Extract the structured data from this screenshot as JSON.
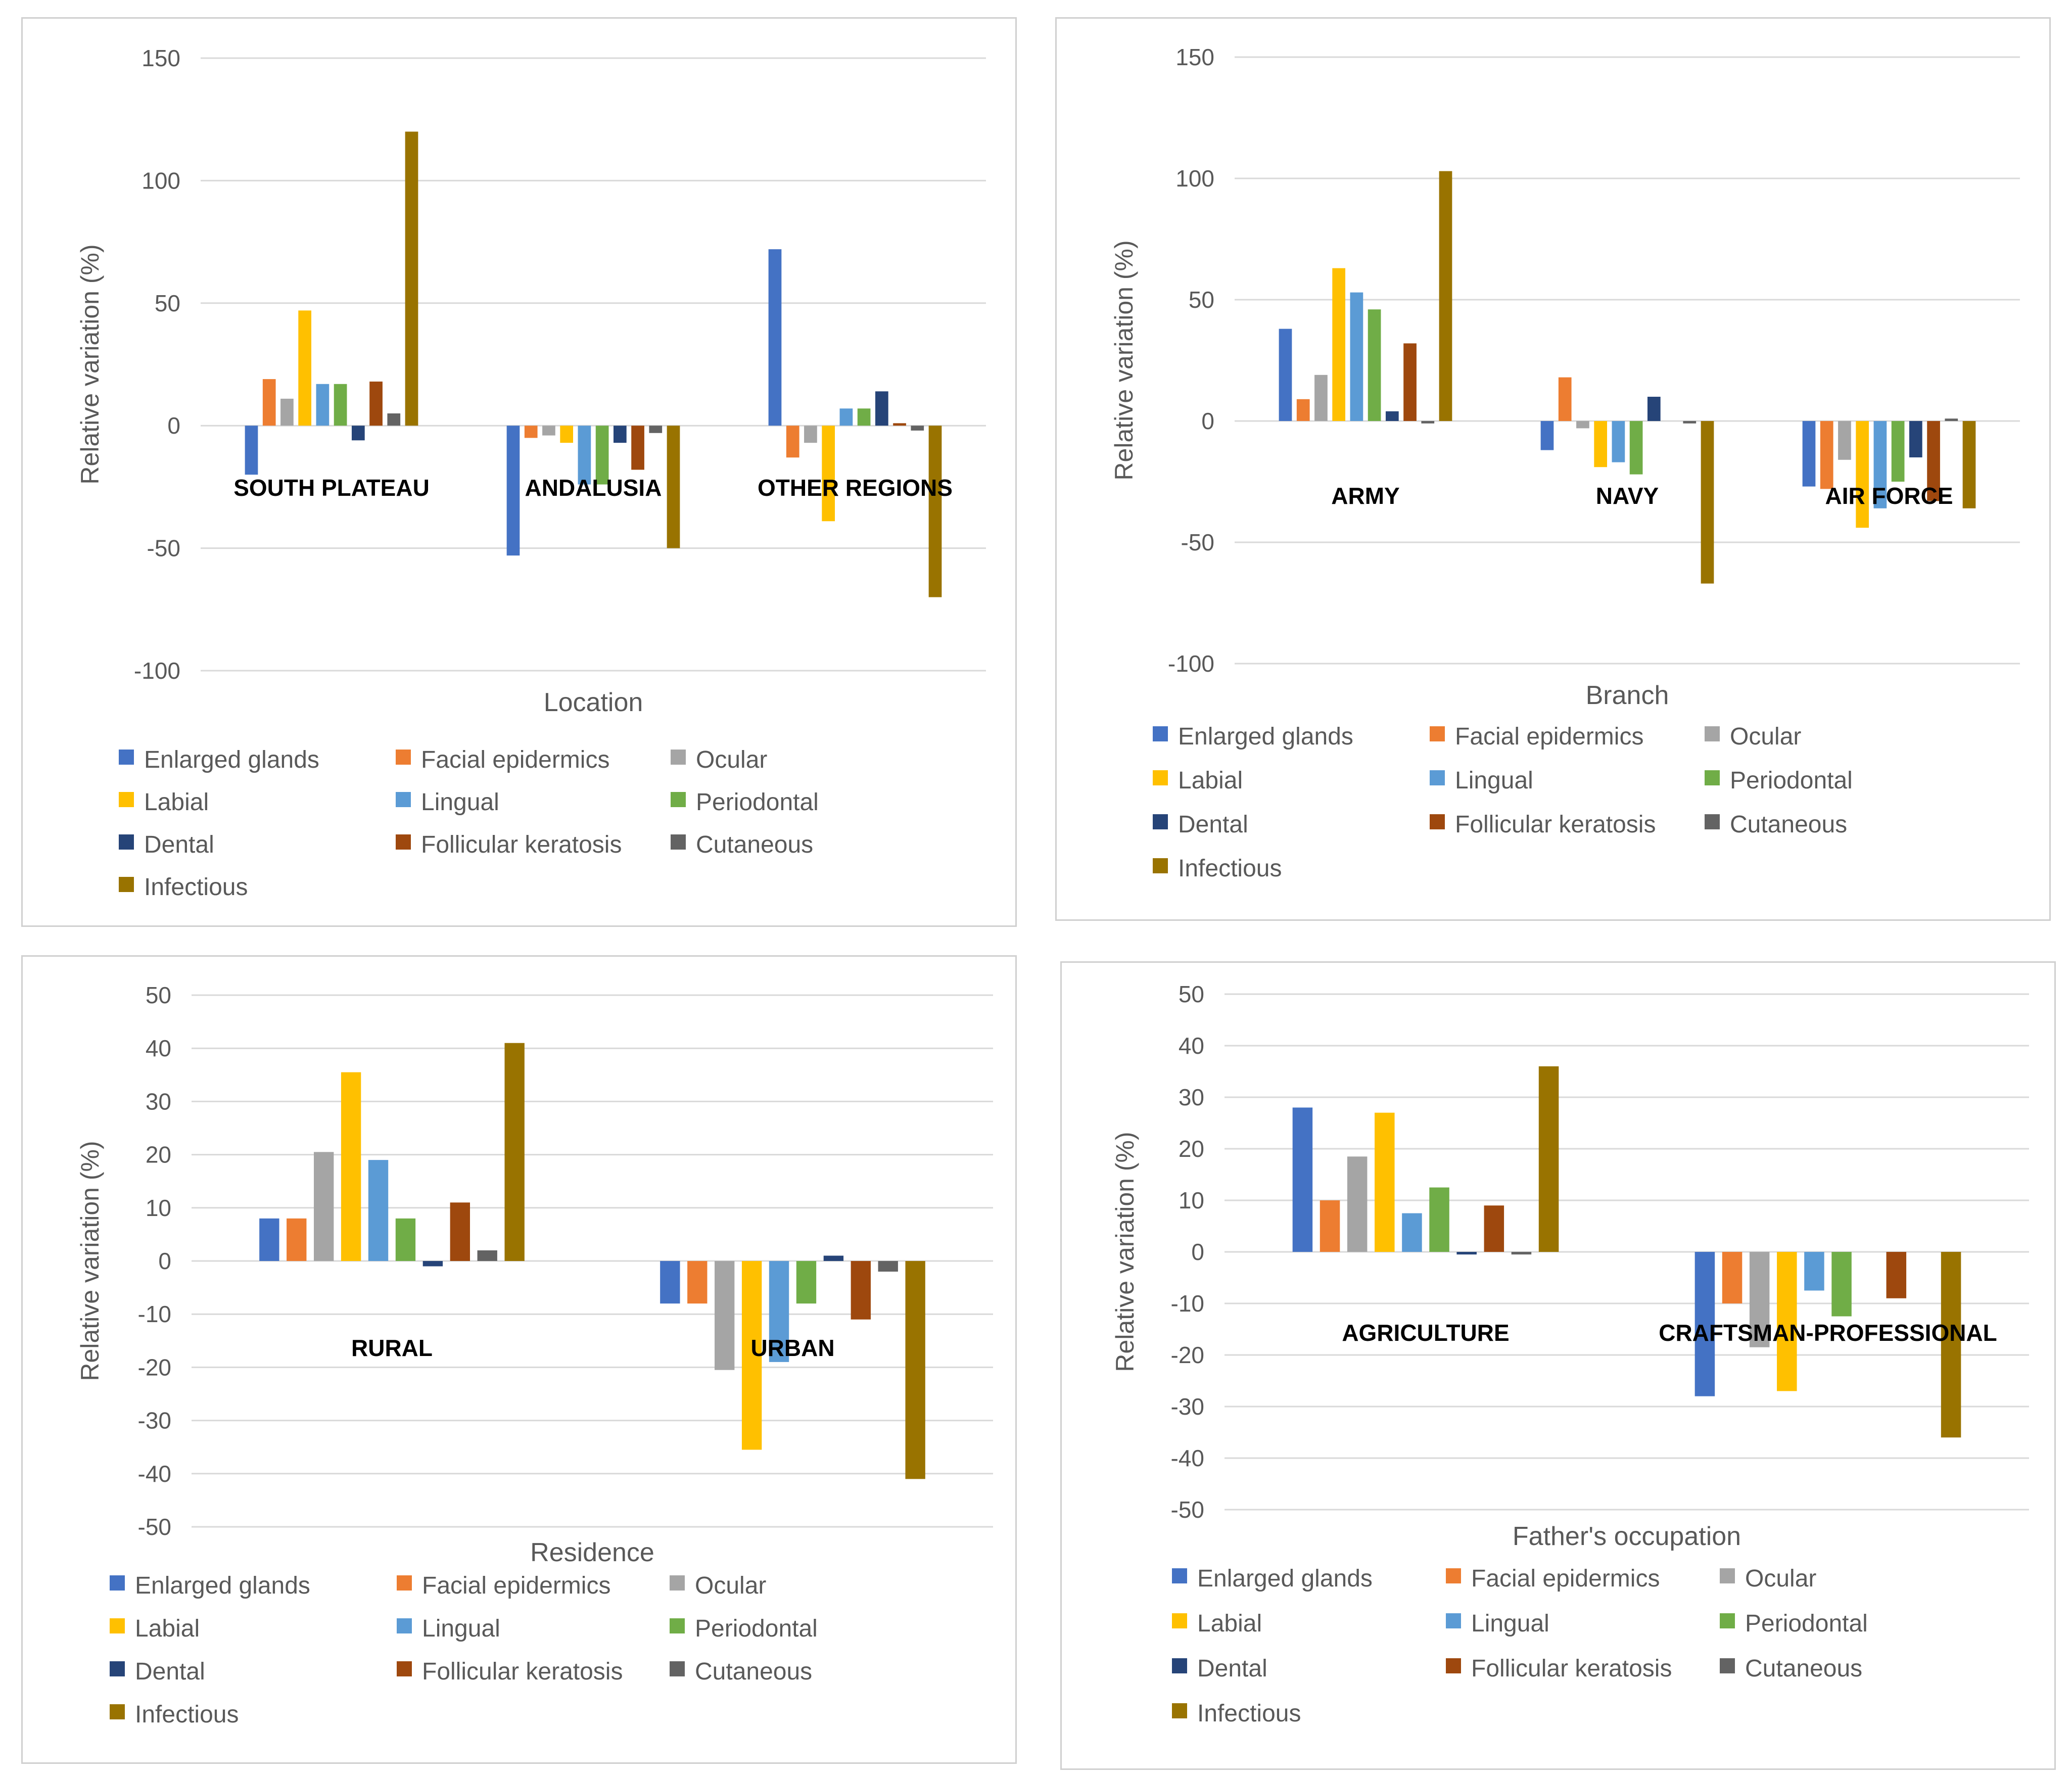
{
  "colors": {
    "Enlarged glands": "#4472C4",
    "Facial epidermics": "#ED7D31",
    "Ocular": "#A5A5A5",
    "Labial": "#FFC000",
    "Lingual": "#5B9BD5",
    "Periodontal": "#70AD47",
    "Dental": "#264478",
    "Follicular keratosis": "#9E480E",
    "Cutaneous": "#636363",
    "Infectious": "#997300"
  },
  "chart_data": [
    {
      "type": "bar",
      "xlabel": "Location",
      "ylabel": "Relative variation (%)",
      "ylim": [
        -100,
        150
      ],
      "yticks": [
        150,
        100,
        50,
        0,
        -50,
        -100
      ],
      "categories": [
        "SOUTH PLATEAU",
        "ANDALUSIA",
        "OTHER REGIONS"
      ],
      "grid": true,
      "legend": "bottom",
      "series": [
        {
          "name": "Enlarged glands",
          "values": [
            -20,
            -53,
            72
          ]
        },
        {
          "name": "Facial epidermics",
          "values": [
            19,
            -5,
            -13
          ]
        },
        {
          "name": "Ocular",
          "values": [
            11,
            -4,
            -7
          ]
        },
        {
          "name": "Labial",
          "values": [
            47,
            -7,
            -39
          ]
        },
        {
          "name": "Lingual",
          "values": [
            17,
            -24,
            7
          ]
        },
        {
          "name": "Periodontal",
          "values": [
            17,
            -24,
            7
          ]
        },
        {
          "name": "Dental",
          "values": [
            -6,
            -7,
            14
          ]
        },
        {
          "name": "Follicular keratosis",
          "values": [
            18,
            -18,
            1
          ]
        },
        {
          "name": "Cutaneous",
          "values": [
            5,
            -3,
            -2
          ]
        },
        {
          "name": "Infectious",
          "values": [
            120,
            -50,
            -70
          ]
        }
      ]
    },
    {
      "type": "bar",
      "xlabel": "Branch",
      "ylabel": "Relative variation (%)",
      "ylim": [
        -100,
        150
      ],
      "yticks": [
        150,
        100,
        50,
        0,
        -50,
        -100
      ],
      "categories": [
        "ARMY",
        "NAVY",
        "AIR FORCE"
      ],
      "grid": true,
      "legend": "bottom",
      "series": [
        {
          "name": "Enlarged glands",
          "values": [
            38,
            -12,
            -27
          ]
        },
        {
          "name": "Facial epidermics",
          "values": [
            9,
            18,
            -28
          ]
        },
        {
          "name": "Ocular",
          "values": [
            19,
            -3,
            -16
          ]
        },
        {
          "name": "Labial",
          "values": [
            63,
            -19,
            -44
          ]
        },
        {
          "name": "Lingual",
          "values": [
            53,
            -17,
            -36
          ]
        },
        {
          "name": "Periodontal",
          "values": [
            46,
            -22,
            -25
          ]
        },
        {
          "name": "Dental",
          "values": [
            4,
            10,
            -15
          ]
        },
        {
          "name": "Follicular keratosis",
          "values": [
            32,
            0,
            -33
          ]
        },
        {
          "name": "Cutaneous",
          "values": [
            -1,
            -1,
            1
          ]
        },
        {
          "name": "Infectious",
          "values": [
            103,
            -67,
            -36
          ]
        }
      ]
    },
    {
      "type": "bar",
      "xlabel": "Residence",
      "ylabel": "Relative variation (%)",
      "ylim": [
        -50,
        50
      ],
      "yticks": [
        50,
        40,
        30,
        20,
        10,
        0,
        -10,
        -20,
        -30,
        -40,
        -50
      ],
      "categories": [
        "RURAL",
        "URBAN"
      ],
      "grid": true,
      "legend": "bottom",
      "series": [
        {
          "name": "Enlarged glands",
          "values": [
            8,
            -8
          ]
        },
        {
          "name": "Facial epidermics",
          "values": [
            8,
            -8
          ]
        },
        {
          "name": "Ocular",
          "values": [
            20.5,
            -20.5
          ]
        },
        {
          "name": "Labial",
          "values": [
            35.5,
            -35.5
          ]
        },
        {
          "name": "Lingual",
          "values": [
            19,
            -19
          ]
        },
        {
          "name": "Periodontal",
          "values": [
            8,
            -8
          ]
        },
        {
          "name": "Dental",
          "values": [
            -1,
            1
          ]
        },
        {
          "name": "Follicular keratosis",
          "values": [
            11,
            -11
          ]
        },
        {
          "name": "Cutaneous",
          "values": [
            2,
            -2
          ]
        },
        {
          "name": "Infectious",
          "values": [
            41,
            -41
          ]
        }
      ]
    },
    {
      "type": "bar",
      "xlabel": "Father's occupation",
      "ylabel": "Relative variation (%)",
      "ylim": [
        -50,
        50
      ],
      "yticks": [
        50,
        40,
        30,
        20,
        10,
        0,
        -10,
        -20,
        -30,
        -40,
        -50
      ],
      "categories": [
        "AGRICULTURE",
        "CRAFTSMAN-PROFESSIONAL"
      ],
      "grid": true,
      "legend": "bottom",
      "series": [
        {
          "name": "Enlarged glands",
          "values": [
            28,
            -28
          ]
        },
        {
          "name": "Facial epidermics",
          "values": [
            10,
            -10
          ]
        },
        {
          "name": "Ocular",
          "values": [
            18.5,
            -18.5
          ]
        },
        {
          "name": "Labial",
          "values": [
            27,
            -27
          ]
        },
        {
          "name": "Lingual",
          "values": [
            7.5,
            -7.5
          ]
        },
        {
          "name": "Periodontal",
          "values": [
            12.5,
            -12.5
          ]
        },
        {
          "name": "Dental",
          "values": [
            -0.5,
            0
          ]
        },
        {
          "name": "Follicular keratosis",
          "values": [
            9,
            -9
          ]
        },
        {
          "name": "Cutaneous",
          "values": [
            -0.5,
            0
          ]
        },
        {
          "name": "Infectious",
          "values": [
            36,
            -36
          ]
        }
      ]
    }
  ]
}
